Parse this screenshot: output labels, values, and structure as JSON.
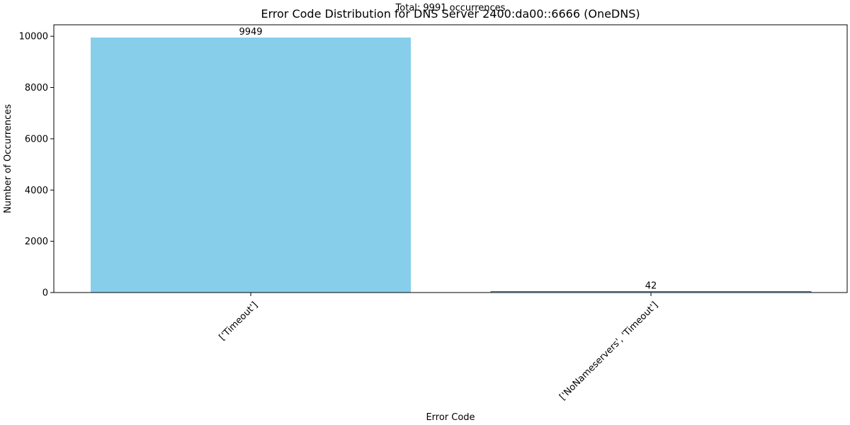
{
  "chart_data": {
    "type": "bar",
    "title": "Error Code Distribution for DNS Server 2400:da00::6666 (OneDNS)",
    "subtitle": "Total: 9991 occurrences",
    "xlabel": "Error Code",
    "ylabel": "Number of Occurrences",
    "categories": [
      "['Timeout']",
      "['NoNameservers', 'Timeout']"
    ],
    "values": [
      9949,
      42
    ],
    "data_labels": [
      "9949",
      "42"
    ],
    "yticks": [
      0,
      2000,
      4000,
      6000,
      8000,
      10000
    ],
    "ylim": [
      0,
      10447
    ],
    "grid": false,
    "legend": "none",
    "colors": {
      "bar": "#87ceeb",
      "bar_edge": "#1f4e79",
      "axis": "#000000"
    }
  }
}
